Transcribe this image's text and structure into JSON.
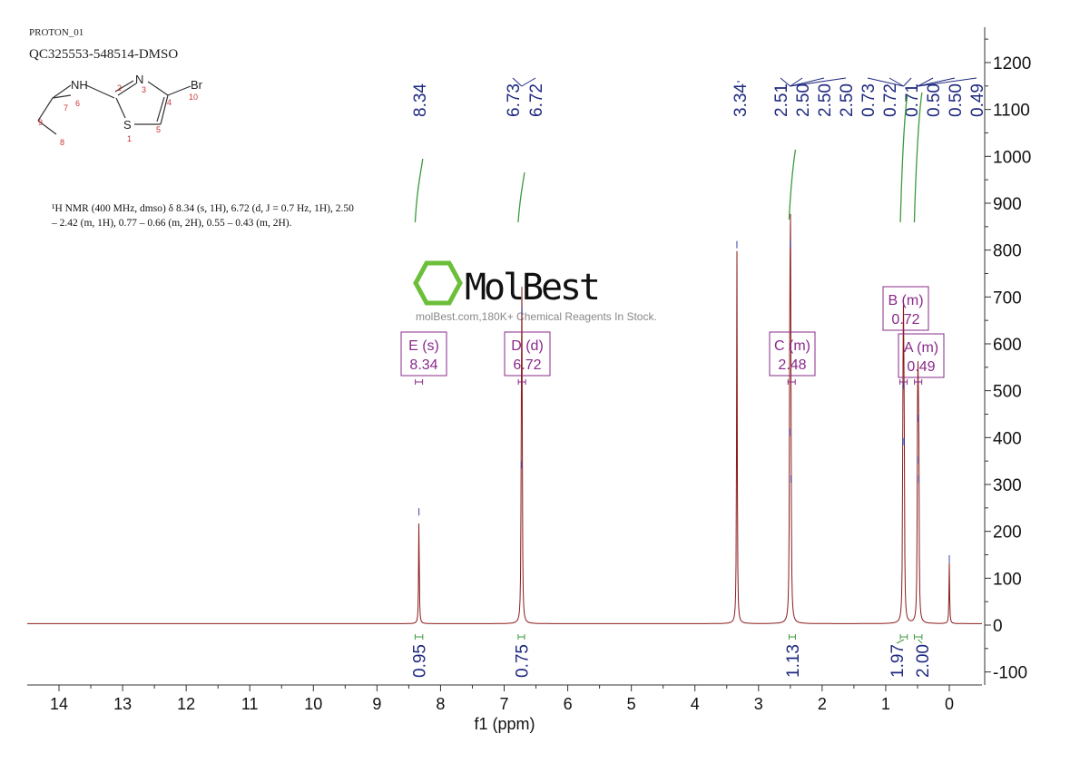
{
  "header": {
    "experiment": "PROTON_01",
    "sample": "QC325553-548514-DMSO"
  },
  "molecule": {
    "atoms": [
      "NH",
      "N",
      "Br",
      "S"
    ],
    "atom_numbers": [
      "1",
      "2",
      "3",
      "4",
      "5",
      "6",
      "7",
      "8",
      "9",
      "10"
    ]
  },
  "description": "¹H NMR (400 MHz, dmso) δ 8.34 (s, 1H), 6.72 (d, J = 0.7 Hz, 1H), 2.50 – 2.42 (m, 1H), 0.77 – 0.66 (m, 2H), 0.55 – 0.43 (m, 2H).",
  "watermark": {
    "brand": "MolBest",
    "tagline": "molBest.com,180K+ Chemical Reagents In Stock."
  },
  "colors": {
    "spectrum": "#8b1a1a",
    "integral": "#3c9a3c",
    "peak_label": "#1f2a80",
    "multiplet": "#8a2a8a",
    "logo": "#6cbf3a"
  },
  "chart_data": {
    "type": "line",
    "xlabel": "f1 (ppm)",
    "xlim": [
      14.5,
      -0.5
    ],
    "ylim": [
      -120,
      1250
    ],
    "x_ticks": [
      14,
      13,
      12,
      11,
      10,
      9,
      8,
      7,
      6,
      5,
      4,
      3,
      2,
      1,
      0
    ],
    "y_ticks": [
      -100,
      0,
      100,
      200,
      300,
      400,
      500,
      600,
      700,
      800,
      900,
      1000,
      1100,
      1200
    ],
    "peaks": [
      {
        "ppm": 8.34,
        "height": 230
      },
      {
        "ppm": 6.73,
        "height": 330
      },
      {
        "ppm": 6.72,
        "height": 660
      },
      {
        "ppm": 3.34,
        "height": 800
      },
      {
        "ppm": 2.51,
        "height": 400
      },
      {
        "ppm": 2.5,
        "height": 800
      },
      {
        "ppm": 2.49,
        "height": 300
      },
      {
        "ppm": 0.73,
        "height": 380
      },
      {
        "ppm": 0.72,
        "height": 500
      },
      {
        "ppm": 0.71,
        "height": 380
      },
      {
        "ppm": 0.5,
        "height": 340
      },
      {
        "ppm": 0.49,
        "height": 430
      },
      {
        "ppm": 0.48,
        "height": 300
      },
      {
        "ppm": 0.0,
        "height": 130
      }
    ],
    "peak_labels": [
      {
        "group": [
          8.34
        ],
        "labels": [
          "8.34"
        ]
      },
      {
        "group": [
          6.73,
          6.72
        ],
        "labels": [
          "6.73",
          "6.72"
        ]
      },
      {
        "group": [
          3.34
        ],
        "labels": [
          "3.34"
        ]
      },
      {
        "group": [
          2.51,
          2.5,
          2.5,
          2.5
        ],
        "labels": [
          "2.51",
          "2.50",
          "2.50",
          "2.50"
        ]
      },
      {
        "group": [
          0.73,
          0.72,
          0.71
        ],
        "labels": [
          "0.73",
          "0.72",
          "0.71"
        ]
      },
      {
        "group": [
          0.5,
          0.5,
          0.49
        ],
        "labels": [
          "0.50",
          "0.50",
          "0.49"
        ]
      }
    ],
    "integrals": [
      {
        "from": 8.4,
        "to": 8.28,
        "value": "0.95"
      },
      {
        "from": 6.78,
        "to": 6.68,
        "value": "0.75"
      },
      {
        "from": 2.52,
        "to": 2.42,
        "value": "1.13"
      },
      {
        "from": 0.77,
        "to": 0.66,
        "value": "1.97"
      },
      {
        "from": 0.55,
        "to": 0.43,
        "value": "2.00"
      }
    ],
    "multiplets": [
      {
        "label": "E (s)",
        "shift": "8.34",
        "ppm": 8.34
      },
      {
        "label": "D (d)",
        "shift": "6.72",
        "ppm": 6.72
      },
      {
        "label": "C (m)",
        "shift": "2.48",
        "ppm": 2.48
      },
      {
        "label": "B (m)",
        "shift": "0.72",
        "ppm": 0.72
      },
      {
        "label": "A (m)",
        "shift": "0.49",
        "ppm": 0.49
      }
    ]
  }
}
